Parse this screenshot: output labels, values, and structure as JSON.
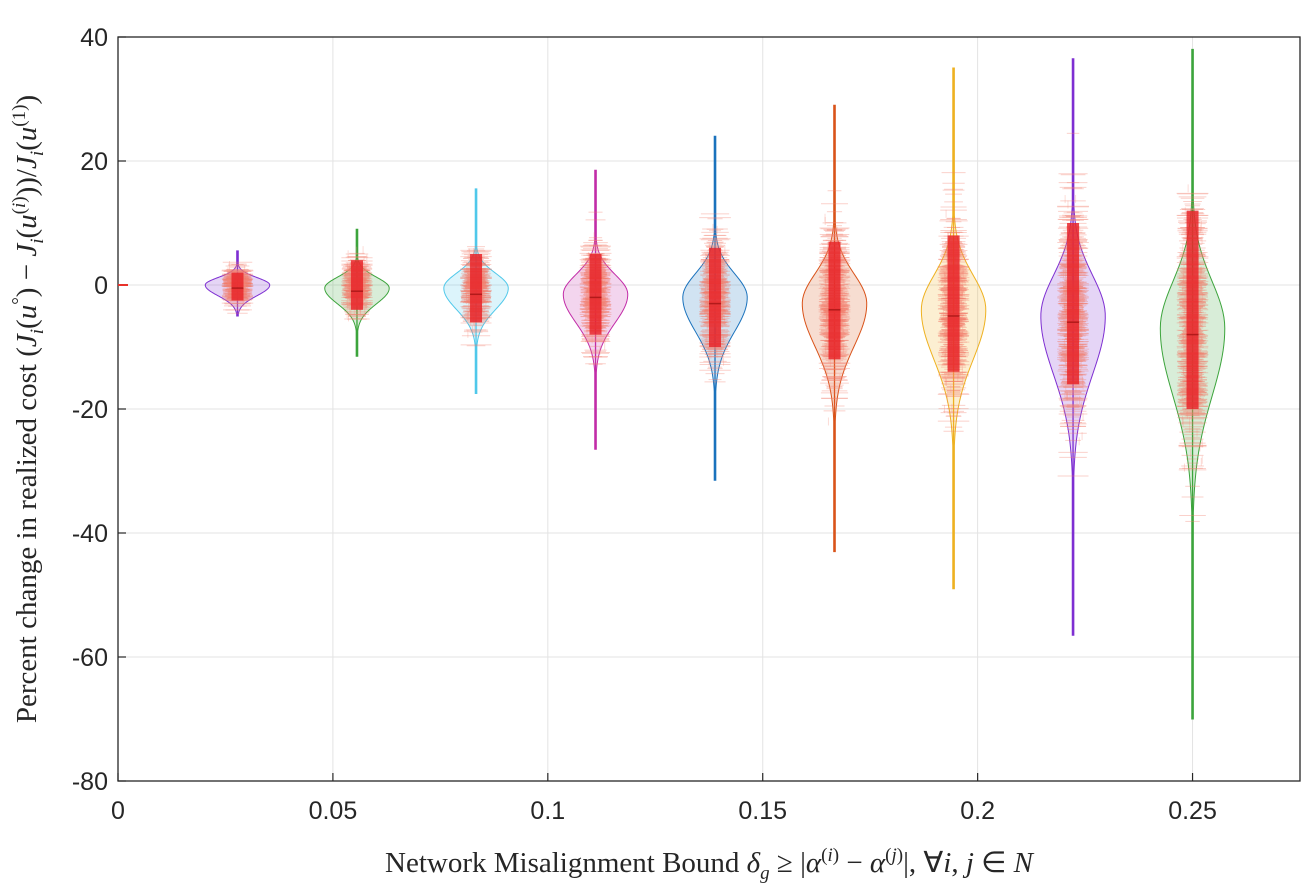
{
  "chart_data": {
    "type": "violin",
    "title": "",
    "xlabel": "Network Misalignment Bound δg ≥ |α(i) − α(j)|, ∀i, j ∈ N",
    "ylabel": "Percent change in realized cost (Ji(u°) − Ji(u(i)))/Ji(u(1))",
    "xlim": [
      0,
      0.275
    ],
    "ylim": [
      -80,
      40
    ],
    "grid": true,
    "x_ticks": [
      {
        "value": 0,
        "label": "0"
      },
      {
        "value": 0.05,
        "label": "0.05"
      },
      {
        "value": 0.1,
        "label": "0.1"
      },
      {
        "value": 0.15,
        "label": "0.15"
      },
      {
        "value": 0.2,
        "label": "0.2"
      },
      {
        "value": 0.25,
        "label": "0.25"
      }
    ],
    "y_ticks": [
      {
        "value": 40,
        "label": "40"
      },
      {
        "value": 20,
        "label": "20"
      },
      {
        "value": 0,
        "label": "0"
      },
      {
        "value": -20,
        "label": "-20"
      },
      {
        "value": -40,
        "label": "-40"
      },
      {
        "value": -60,
        "label": "-60"
      },
      {
        "value": -80,
        "label": "-80"
      }
    ],
    "violins": [
      {
        "x": 0.0278,
        "median": -0.5,
        "min": -5,
        "max": 5.5,
        "q1": -2.5,
        "q3": 2,
        "mode": 0,
        "half_width": 0.0075,
        "spread": 1.5,
        "color": "#7e2fd2"
      },
      {
        "x": 0.0556,
        "median": -1,
        "min": -11.5,
        "max": 9,
        "q1": -4,
        "q3": 4,
        "mode": -0.5,
        "half_width": 0.0075,
        "spread": 2.2,
        "color": "#3ca43c"
      },
      {
        "x": 0.0833,
        "median": -1.5,
        "min": -17.5,
        "max": 15.5,
        "q1": -6,
        "q3": 5,
        "mode": -0.5,
        "half_width": 0.0075,
        "spread": 3,
        "color": "#4fc8ea"
      },
      {
        "x": 0.1111,
        "median": -2,
        "min": -26.5,
        "max": 18.5,
        "q1": -8,
        "q3": 5,
        "mode": -1.5,
        "half_width": 0.0075,
        "spread": 4,
        "color": "#c22ca8"
      },
      {
        "x": 0.1389,
        "median": -3,
        "min": -31.5,
        "max": 24,
        "q1": -10,
        "q3": 6,
        "mode": -2,
        "half_width": 0.0075,
        "spread": 4.8,
        "color": "#1a72bd"
      },
      {
        "x": 0.1667,
        "median": -4,
        "min": -43,
        "max": 29,
        "q1": -12,
        "q3": 7,
        "mode": -3,
        "half_width": 0.0075,
        "spread": 6,
        "color": "#d9531a"
      },
      {
        "x": 0.1944,
        "median": -5,
        "min": -49,
        "max": 35,
        "q1": -14,
        "q3": 8,
        "mode": -4,
        "half_width": 0.0075,
        "spread": 7,
        "color": "#eeb120"
      },
      {
        "x": 0.2222,
        "median": -6,
        "min": -56.5,
        "max": 36.5,
        "q1": -16,
        "q3": 10,
        "mode": -5,
        "half_width": 0.0075,
        "spread": 8.2,
        "color": "#7e2fd2"
      },
      {
        "x": 0.25,
        "median": -8,
        "min": -70,
        "max": 38,
        "q1": -20,
        "q3": 12,
        "mode": -7,
        "half_width": 0.0075,
        "spread": 9.5,
        "color": "#3ca43c"
      }
    ]
  }
}
